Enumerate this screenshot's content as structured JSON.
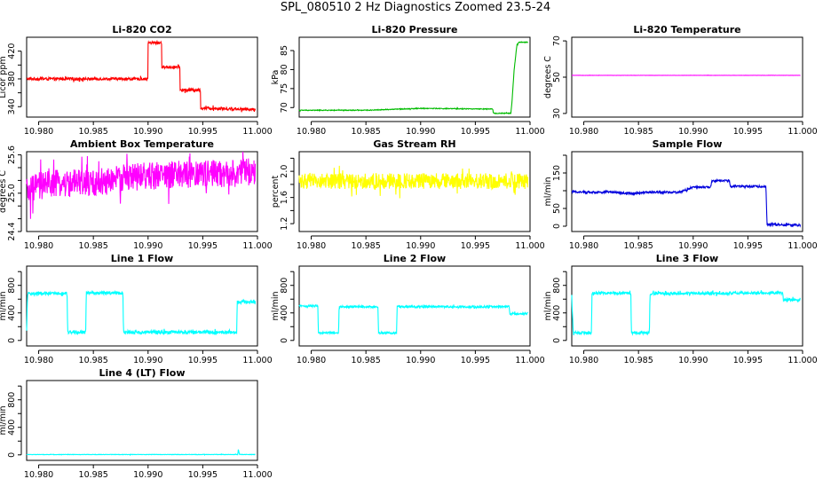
{
  "figure": {
    "title": "SPL_080510  2 Hz Diagnostics Zoomed 23.5-24"
  },
  "chart_data": [
    {
      "type": "line",
      "title": "Li-820 CO2",
      "xlabel": "",
      "ylabel": "Licor ppm",
      "color": "#ff0000",
      "xlim": [
        10.9789,
        11.0
      ],
      "ylim": [
        325,
        440
      ],
      "xticks": [
        10.98,
        10.985,
        10.99,
        10.995,
        11.0
      ],
      "xtick_labels": [
        "10.980",
        "10.985",
        "10.990",
        "10.995",
        "11.000"
      ],
      "yticks": [
        340,
        360,
        380,
        400,
        420
      ],
      "ytick_labels": [
        "340",
        "",
        "380",
        "",
        "420"
      ],
      "noise": 2,
      "x": [
        10.9789,
        10.98999,
        10.99,
        10.99124,
        10.99125,
        10.99292,
        10.99293,
        10.9948,
        10.99481,
        10.9998
      ],
      "y": [
        380,
        380,
        432,
        432,
        397,
        397,
        364,
        364,
        338,
        336
      ]
    },
    {
      "type": "line",
      "title": "Li-820 Pressure",
      "xlabel": "",
      "ylabel": "kPa",
      "color": "#00bb00",
      "xlim": [
        10.9789,
        11.0
      ],
      "ylim": [
        67.5,
        88.5
      ],
      "xticks": [
        10.98,
        10.985,
        10.99,
        10.995,
        11.0
      ],
      "xtick_labels": [
        "10.980",
        "10.985",
        "10.990",
        "10.995",
        "11.000"
      ],
      "yticks": [
        70,
        75,
        80,
        85
      ],
      "ytick_labels": [
        "70",
        "75",
        "80",
        "85"
      ],
      "noise": 0.1,
      "x": [
        10.9789,
        10.985,
        10.99,
        10.9966,
        10.99665,
        10.99825,
        10.99835,
        10.99855,
        10.9988,
        10.999,
        10.9998
      ],
      "y": [
        69.3,
        69.3,
        69.8,
        69.6,
        68.5,
        68.5,
        71.5,
        80,
        86.5,
        87.2,
        87.2
      ]
    },
    {
      "type": "line",
      "title": "Li-820 Temperature",
      "xlabel": "",
      "ylabel": "degrees C",
      "color": "#ff00ff",
      "xlim": [
        10.9789,
        11.0
      ],
      "ylim": [
        28,
        72
      ],
      "xticks": [
        10.98,
        10.985,
        10.99,
        10.995,
        11.0
      ],
      "xtick_labels": [
        "10.980",
        "10.985",
        "10.990",
        "10.995",
        "11.000"
      ],
      "yticks": [
        30,
        50,
        70
      ],
      "ytick_labels": [
        "30",
        "50",
        "70"
      ],
      "noise": 0.05,
      "x": [
        10.9789,
        10.9998
      ],
      "y": [
        51,
        51
      ]
    },
    {
      "type": "line",
      "title": "Ambient Box Temperature",
      "xlabel": "",
      "ylabel": "degrees C",
      "color": "#ff00ff",
      "xlim": [
        10.9789,
        11.0
      ],
      "ylim": [
        24.4,
        25.65
      ],
      "xticks": [
        10.98,
        10.985,
        10.99,
        10.995,
        11.0
      ],
      "xtick_labels": [
        "10.980",
        "10.985",
        "10.990",
        "10.995",
        "11.000"
      ],
      "yticks": [
        24.4,
        24.6,
        24.8,
        25.0,
        25.2,
        25.4,
        25.6
      ],
      "ytick_labels": [
        "24.4",
        "",
        "",
        "25.0",
        "",
        "",
        "25.6"
      ],
      "noise": 0.22,
      "x": [
        10.9789,
        10.9798,
        10.981,
        10.985,
        10.988,
        10.993,
        10.997,
        10.9998
      ],
      "y": [
        25.0,
        25.1,
        25.15,
        25.15,
        25.25,
        25.3,
        25.3,
        25.35
      ]
    },
    {
      "type": "line",
      "title": "Gas Stream RH",
      "xlabel": "",
      "ylabel": "percent",
      "color": "#ffff00",
      "xlim": [
        10.9789,
        11.0
      ],
      "ylim": [
        1.08,
        2.3
      ],
      "xticks": [
        10.98,
        10.985,
        10.99,
        10.995,
        11.0
      ],
      "xtick_labels": [
        "10.980",
        "10.985",
        "10.990",
        "10.995",
        "11.000"
      ],
      "yticks": [
        1.2,
        1.4,
        1.6,
        1.8,
        2.0,
        2.2
      ],
      "ytick_labels": [
        "1.2",
        "",
        "1.6",
        "",
        "2.0",
        ""
      ],
      "noise": 0.12,
      "x": [
        10.9789,
        10.9998
      ],
      "y": [
        1.85,
        1.85
      ]
    },
    {
      "type": "line",
      "title": "Sample Flow",
      "xlabel": "",
      "ylabel": "ml/min",
      "color": "#0000dd",
      "xlim": [
        10.9789,
        11.0
      ],
      "ylim": [
        -15,
        210
      ],
      "xticks": [
        10.98,
        10.985,
        10.99,
        10.995,
        11.0
      ],
      "xtick_labels": [
        "10.980",
        "10.985",
        "10.990",
        "10.995",
        "11.000"
      ],
      "yticks": [
        0,
        50,
        100,
        150,
        200
      ],
      "ytick_labels": [
        "0",
        "50",
        "",
        "150",
        ""
      ],
      "noise": 3,
      "x": [
        10.9789,
        10.9812,
        10.9823,
        10.9843,
        10.986,
        10.9888,
        10.99,
        10.9916,
        10.9917,
        10.9933,
        10.9934,
        10.99665,
        10.99675,
        10.9998
      ],
      "y": [
        97,
        95,
        97,
        92,
        96,
        96,
        110,
        110,
        128,
        128,
        112,
        112,
        5,
        3
      ]
    },
    {
      "type": "line",
      "title": "Line 1 Flow",
      "xlabel": "",
      "ylabel": "ml/min",
      "color": "#00ffff",
      "xlim": [
        10.9789,
        11.0
      ],
      "ylim": [
        -80,
        1080
      ],
      "xticks": [
        10.98,
        10.985,
        10.99,
        10.995,
        11.0
      ],
      "xtick_labels": [
        "10.980",
        "10.985",
        "10.990",
        "10.995",
        "11.000"
      ],
      "yticks": [
        0,
        200,
        400,
        600,
        800,
        1000
      ],
      "ytick_labels": [
        "0",
        "",
        "400",
        "",
        "800",
        ""
      ],
      "noise": 25,
      "x": [
        10.9789,
        10.97898,
        10.9798,
        10.9826,
        10.98265,
        10.9843,
        10.98435,
        10.9877,
        10.98775,
        10.9981,
        10.99815,
        10.9998
      ],
      "y": [
        120,
        680,
        680,
        680,
        120,
        120,
        690,
        690,
        120,
        120,
        560,
        560
      ]
    },
    {
      "type": "line",
      "title": "Line 2 Flow",
      "xlabel": "",
      "ylabel": "ml/min",
      "color": "#00ffff",
      "xlim": [
        10.9789,
        11.0
      ],
      "ylim": [
        -80,
        1080
      ],
      "xticks": [
        10.98,
        10.985,
        10.99,
        10.995,
        11.0
      ],
      "xtick_labels": [
        "10.980",
        "10.985",
        "10.990",
        "10.995",
        "11.000"
      ],
      "yticks": [
        0,
        200,
        400,
        600,
        800,
        1000
      ],
      "ytick_labels": [
        "0",
        "",
        "400",
        "",
        "800",
        ""
      ],
      "noise": 15,
      "x": [
        10.9789,
        10.9806,
        10.98065,
        10.9825,
        10.98255,
        10.9861,
        10.98615,
        10.9878,
        10.98785,
        10.9981,
        10.99815,
        10.9998
      ],
      "y": [
        500,
        500,
        110,
        110,
        490,
        490,
        110,
        110,
        490,
        490,
        390,
        390
      ]
    },
    {
      "type": "line",
      "title": "Line 3 Flow",
      "xlabel": "",
      "ylabel": "ml/min",
      "color": "#00ffff",
      "xlim": [
        10.9789,
        11.0
      ],
      "ylim": [
        -80,
        1080
      ],
      "xticks": [
        10.98,
        10.985,
        10.99,
        10.995,
        11.0
      ],
      "xtick_labels": [
        "10.980",
        "10.985",
        "10.990",
        "10.995",
        "11.000"
      ],
      "yticks": [
        0,
        200,
        400,
        600,
        800,
        1000
      ],
      "ytick_labels": [
        "0",
        "",
        "400",
        "",
        "800",
        ""
      ],
      "noise": 20,
      "x": [
        10.9789,
        10.97895,
        10.97905,
        10.9807,
        10.98075,
        10.9843,
        10.98435,
        10.986,
        10.98605,
        10.9982,
        10.99825,
        10.9998
      ],
      "y": [
        680,
        400,
        110,
        110,
        690,
        690,
        110,
        110,
        680,
        690,
        590,
        590
      ]
    },
    {
      "type": "line",
      "title": "Line 4 (LT) Flow",
      "xlabel": "",
      "ylabel": "ml/min",
      "color": "#00ffff",
      "xlim": [
        10.9789,
        11.0
      ],
      "ylim": [
        -80,
        1080
      ],
      "xticks": [
        10.98,
        10.985,
        10.99,
        10.995,
        11.0
      ],
      "xtick_labels": [
        "10.980",
        "10.985",
        "10.990",
        "10.995",
        "11.000"
      ],
      "yticks": [
        0,
        200,
        400,
        600,
        800,
        1000
      ],
      "ytick_labels": [
        "0",
        "",
        "400",
        "",
        "800",
        ""
      ],
      "noise": 3,
      "x": [
        10.9789,
        10.9982,
        10.99825,
        10.99835,
        10.9985,
        10.9998
      ],
      "y": [
        5,
        5,
        80,
        10,
        5,
        5
      ]
    }
  ]
}
